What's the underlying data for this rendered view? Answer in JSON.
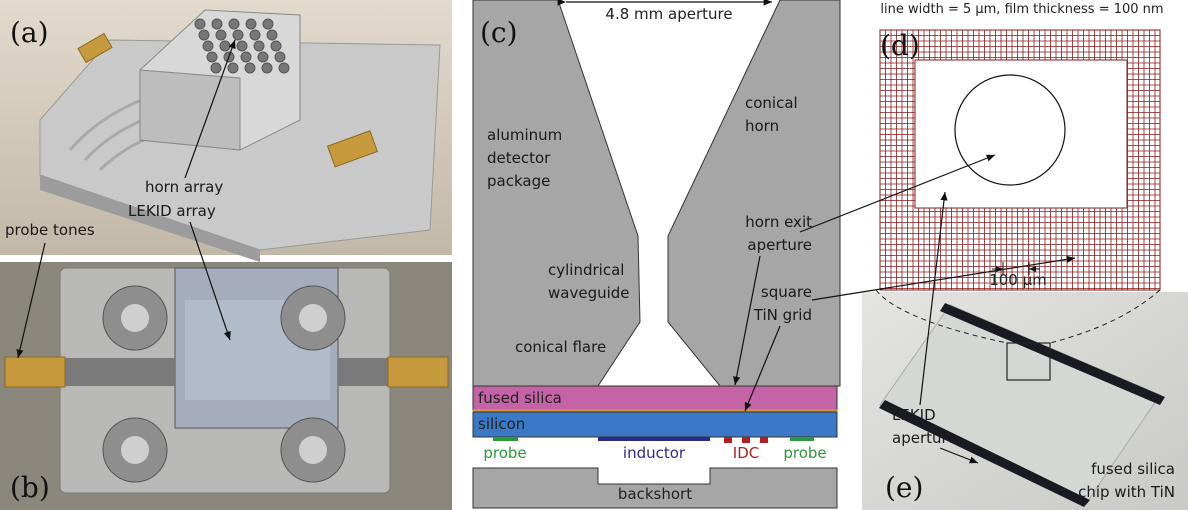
{
  "panels": {
    "a": {
      "label": "(a)",
      "annotations": [
        "horn array",
        "probe tones"
      ]
    },
    "b": {
      "label": "(b)",
      "annotations": [
        "LEKID array"
      ]
    },
    "c": {
      "label": "(c)",
      "aperture": "4.8 mm aperture",
      "annotations": [
        [
          "aluminum",
          "detector",
          "package"
        ],
        [
          "conical",
          "horn"
        ],
        [
          "cylindrical",
          "waveguide"
        ],
        [
          "conical flare"
        ],
        [
          "horn exit",
          "aperture"
        ],
        [
          "square",
          "TiN grid"
        ]
      ],
      "layers": [
        "fused silica",
        "silicon"
      ],
      "elements": [
        "probe",
        "inductor",
        "IDC",
        "probe"
      ],
      "backshort": "backshort"
    },
    "d": {
      "label": "(d)",
      "caption": "line width = 5 μm, film thickness = 100 nm",
      "scale": "100 μm"
    },
    "e": {
      "label": "(e)",
      "annotations": [
        [
          "LEKID",
          "aperture"
        ],
        [
          "fused silica",
          "chip with TiN"
        ]
      ]
    }
  }
}
